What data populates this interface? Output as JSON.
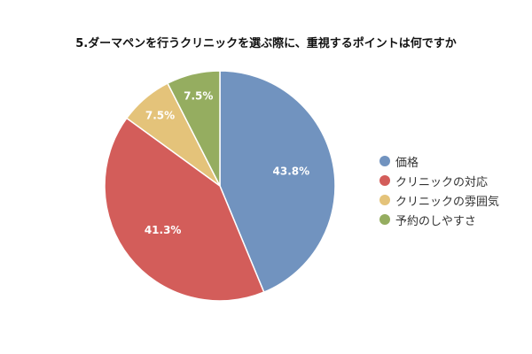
{
  "chart_data": {
    "type": "pie",
    "title": "5.ダーマペンを行うクリニックを選ぶ際に、重視するポイントは何ですか",
    "categories": [
      "価格",
      "クリニックの対応",
      "クリニックの雰囲気",
      "予約のしやすさ"
    ],
    "values": [
      43.8,
      41.3,
      7.5,
      7.5
    ],
    "value_labels": [
      "43.8%",
      "41.3%",
      "7.5%",
      "7.5%"
    ],
    "colors": [
      "#7193bf",
      "#d35d5a",
      "#e4c37a",
      "#95ad60"
    ],
    "start_angle": "top",
    "direction": "clockwise",
    "legend_position": "right"
  }
}
